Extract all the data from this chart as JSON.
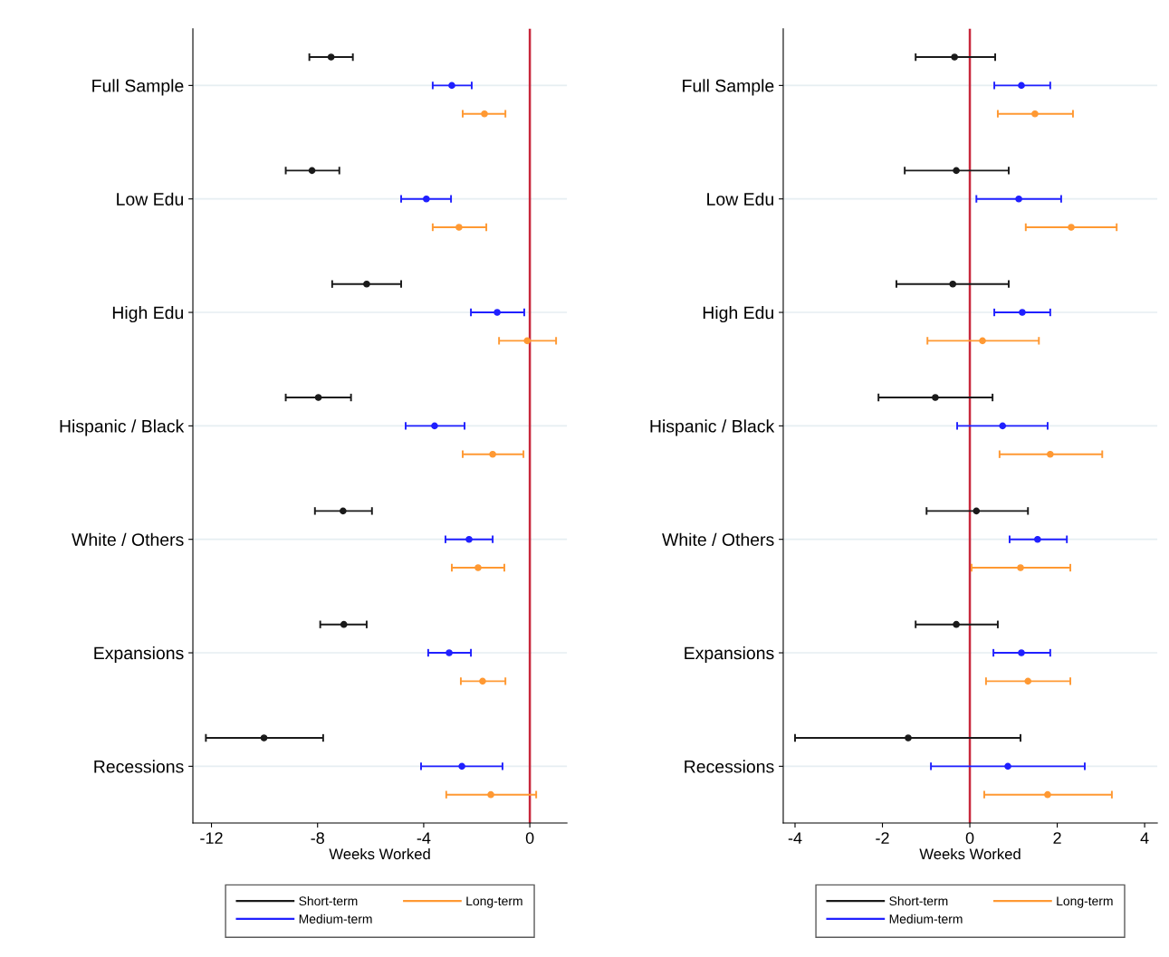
{
  "chart_data": [
    {
      "type": "scatter",
      "orientation": "horizontal",
      "xlabel": "Weeks Worked",
      "categories": [
        "Full Sample",
        "Low Edu",
        "High Edu",
        "Hispanic / Black",
        "White / Others",
        "Expansions",
        "Recessions"
      ],
      "xlim": [
        -12.7,
        1.4
      ],
      "xticks": [
        -12,
        -8,
        -4,
        0
      ],
      "grid": "y",
      "legend": "bottom",
      "marker": "circle",
      "ref_lines": [
        {
          "axis": "x",
          "value": 0,
          "color": "#c8283c"
        }
      ],
      "series": [
        {
          "name": "Short-term",
          "color": "#1a1a1a",
          "values": [
            -7.49,
            -8.21,
            -6.15,
            -7.97,
            -7.04,
            -7.01,
            -10.02
          ],
          "errors": [
            [
              -8.31,
              -6.67
            ],
            [
              -9.2,
              -7.18
            ],
            [
              -7.45,
              -4.85
            ],
            [
              -9.2,
              -6.74
            ],
            [
              -8.1,
              -5.95
            ],
            [
              -7.9,
              -6.15
            ],
            [
              -12.21,
              -7.79
            ]
          ]
        },
        {
          "name": "Medium-term",
          "color": "#2020ff",
          "values": [
            -2.94,
            -3.9,
            -1.23,
            -3.59,
            -2.29,
            -3.04,
            -2.56
          ],
          "errors": [
            [
              -3.66,
              -2.19
            ],
            [
              -4.85,
              -2.97
            ],
            [
              -2.22,
              -0.21
            ],
            [
              -4.68,
              -2.46
            ],
            [
              -3.18,
              -1.4
            ],
            [
              -3.83,
              -2.22
            ],
            [
              -4.1,
              -1.03
            ]
          ]
        },
        {
          "name": "Long-term",
          "color": "#ff9933",
          "values": [
            -1.71,
            -2.67,
            -0.1,
            -1.4,
            -1.95,
            -1.78,
            -1.47
          ],
          "errors": [
            [
              -2.53,
              -0.92
            ],
            [
              -3.66,
              -1.64
            ],
            [
              -1.16,
              0.99
            ],
            [
              -2.53,
              -0.24
            ],
            [
              -2.94,
              -0.96
            ],
            [
              -2.6,
              -0.92
            ],
            [
              -3.15,
              0.24
            ]
          ]
        }
      ]
    },
    {
      "type": "scatter",
      "orientation": "horizontal",
      "xlabel": "Weeks Worked",
      "categories": [
        "Full Sample",
        "Low Edu",
        "High Edu",
        "Hispanic / Black",
        "White / Others",
        "Expansions",
        "Recessions"
      ],
      "xlim": [
        -4.27,
        4.29
      ],
      "xticks": [
        -4,
        -2,
        0,
        2,
        4
      ],
      "grid": "y",
      "legend": "bottom",
      "marker": "circle",
      "ref_lines": [
        {
          "axis": "x",
          "value": 0,
          "color": "#c8283c"
        }
      ],
      "series": [
        {
          "name": "Short-term",
          "color": "#1a1a1a",
          "values": [
            -0.35,
            -0.31,
            -0.39,
            -0.79,
            0.15,
            -0.31,
            -1.41
          ],
          "errors": [
            [
              -1.24,
              0.58
            ],
            [
              -1.49,
              0.89
            ],
            [
              -1.68,
              0.89
            ],
            [
              -2.09,
              0.52
            ],
            [
              -0.99,
              1.33
            ],
            [
              -1.24,
              0.64
            ],
            [
              -4.0,
              1.16
            ]
          ]
        },
        {
          "name": "Medium-term",
          "color": "#2020ff",
          "values": [
            1.18,
            1.12,
            1.2,
            0.75,
            1.55,
            1.18,
            0.87
          ],
          "errors": [
            [
              0.56,
              1.84
            ],
            [
              0.15,
              2.09
            ],
            [
              0.56,
              1.84
            ],
            [
              -0.29,
              1.78
            ],
            [
              0.91,
              2.22
            ],
            [
              0.54,
              1.84
            ],
            [
              -0.89,
              2.63
            ]
          ]
        },
        {
          "name": "Long-term",
          "color": "#ff9933",
          "values": [
            1.49,
            2.32,
            0.29,
            1.84,
            1.16,
            1.33,
            1.78
          ],
          "errors": [
            [
              0.64,
              2.36
            ],
            [
              1.28,
              3.36
            ],
            [
              -0.97,
              1.58
            ],
            [
              0.68,
              3.03
            ],
            [
              0.04,
              2.3
            ],
            [
              0.37,
              2.3
            ],
            [
              0.33,
              3.25
            ]
          ]
        }
      ]
    }
  ]
}
